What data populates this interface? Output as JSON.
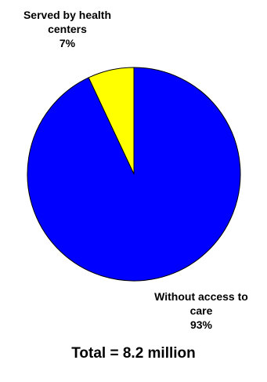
{
  "chart_data": {
    "type": "pie",
    "title": "",
    "slices": [
      {
        "name": "Served by health centers",
        "name_lines": [
          "Served by health",
          "centers"
        ],
        "value": 7,
        "value_label": "7%",
        "color": "#ffff00"
      },
      {
        "name": "Without access to care",
        "name_lines": [
          "Without access to",
          "care"
        ],
        "value": 93,
        "value_label": "93%",
        "color": "#0000ff"
      }
    ],
    "start_angle_deg": 0,
    "direction": "counterclockwise",
    "outline_color": "#000000"
  },
  "total_label": "Total = 8.2 million"
}
